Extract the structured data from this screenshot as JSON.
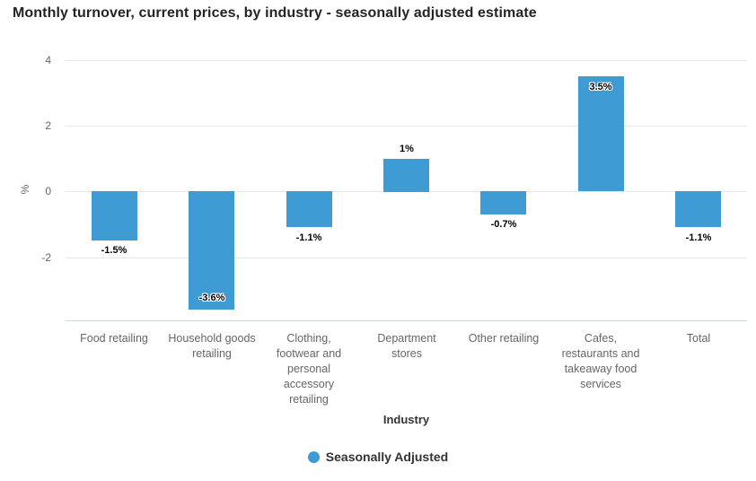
{
  "title": "Monthly turnover, current prices, by industry - seasonally adjusted estimate",
  "chart_data": {
    "type": "bar",
    "title": "Monthly turnover, current prices, by industry - seasonally adjusted estimate",
    "xlabel": "Industry",
    "ylabel": "%",
    "ylim": [
      -3.92,
      4
    ],
    "yticks": [
      4,
      2,
      0,
      -2
    ],
    "grid": true,
    "legend_position": "bottom-center",
    "categories": [
      "Food retailing",
      "Household goods retailing",
      "Clothing, footwear and personal accessory retailing",
      "Department stores",
      "Other retailing",
      "Cafes, restaurants and takeaway food services",
      "Total"
    ],
    "series": [
      {
        "name": "Seasonally Adjusted",
        "color": "#3e9bd3",
        "values": [
          -1.5,
          -3.6,
          -1.1,
          1,
          -0.7,
          3.5,
          -1.1
        ],
        "point_labels": [
          "-1.5%",
          "-3.6%",
          "-1.1%",
          "1%",
          "-0.7%",
          "3.5%",
          "-1.1%"
        ],
        "label_inside": [
          false,
          true,
          false,
          false,
          false,
          true,
          false
        ]
      }
    ]
  },
  "legend": {
    "label": "Seasonally Adjusted",
    "marker_color": "#3e9bd3"
  },
  "colors": {
    "bar": "#3e9bd3",
    "gridline": "#e6e6e6",
    "axis_line": "#ccd6eb",
    "tick_text": "#666666",
    "title_text": "#252423"
  }
}
